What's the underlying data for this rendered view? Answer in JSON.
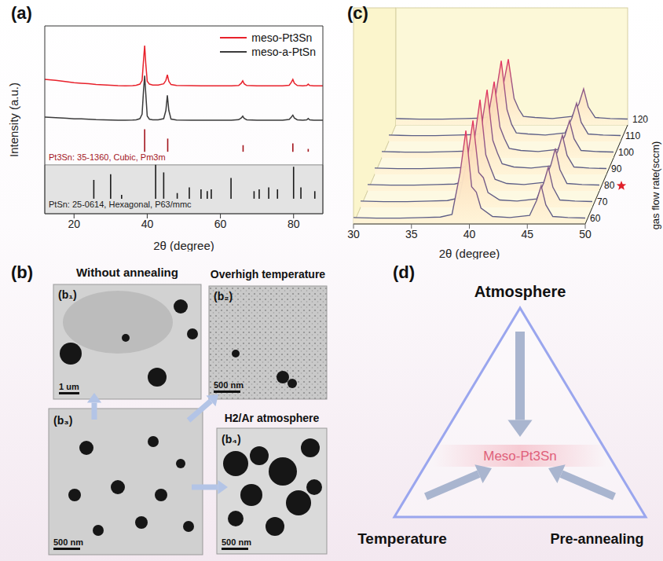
{
  "chart_data": [
    {
      "panel": "(a)",
      "type": "line",
      "x_label": "2θ (degree)",
      "y_label": "Intensity (a.u.)",
      "xlim": [
        12,
        88
      ],
      "xticks": [
        20,
        40,
        60,
        80
      ],
      "ylim": [
        0,
        100
      ],
      "tick_labels": "x",
      "legend": "upper right",
      "x": [
        12,
        15,
        18,
        20,
        22,
        24,
        26,
        28,
        30,
        32,
        34,
        36,
        37,
        38,
        38.6,
        39,
        39.3,
        39.6,
        40,
        40.6,
        41.5,
        43,
        44.5,
        45.1,
        45.5,
        45.9,
        46.5,
        48,
        52,
        56,
        60,
        63,
        65,
        65.7,
        66.1,
        66.5,
        67.2,
        70,
        74,
        77,
        78.8,
        79.4,
        79.8,
        80.2,
        81,
        82.5,
        83.6,
        84,
        84.4,
        85.5,
        88
      ],
      "series": [
        {
          "name": "meso-Pt3Sn",
          "color": "#e8212b",
          "values": [
            71.5,
            71,
            70.3,
            69.8,
            69.5,
            69.2,
            68.8,
            68.6,
            68.4,
            68.2,
            68.1,
            68.2,
            68.4,
            69,
            71,
            82,
            89.5,
            80,
            70.5,
            69,
            68.5,
            68.5,
            69.2,
            71,
            74,
            70.5,
            68.8,
            68.3,
            68.2,
            68.1,
            68.1,
            68.1,
            68.3,
            69.5,
            70.8,
            69.2,
            68.3,
            68.1,
            68.1,
            68.1,
            68.4,
            70,
            71.5,
            69.5,
            68.3,
            68.1,
            68.3,
            69,
            68.3,
            68.1,
            68.1
          ]
        },
        {
          "name": "meso-a-PtSn",
          "color": "#3b3b3b",
          "values": [
            51.5,
            51.2,
            50.8,
            50.5,
            50.5,
            50.3,
            50.1,
            50,
            49.9,
            49.8,
            49.8,
            49.9,
            50,
            50.6,
            53,
            66,
            73.5,
            64,
            52,
            50.3,
            50,
            50,
            50.6,
            55,
            63,
            55,
            50.4,
            49.9,
            49.8,
            49.8,
            49.8,
            49.8,
            50.1,
            51,
            52,
            50.8,
            50,
            49.8,
            49.8,
            49.8,
            50.2,
            51.5,
            52.5,
            51,
            50,
            49.8,
            50,
            50.7,
            50,
            49.8,
            49.8
          ]
        }
      ],
      "references": [
        {
          "name": "Pt3Sn: 35-1360, Cubic, Pm3m",
          "color": "#a3151d",
          "baseline": 33,
          "x": [
            39.3,
            45.6,
            66.2,
            79.8,
            84
          ],
          "values": [
            45,
            40,
            36.5,
            37.5,
            34.5
          ]
        },
        {
          "name": "PtSn: 25-0614, Hexagonal, P63/mmc",
          "color": "#1a1a1a",
          "baseline": 8,
          "x": [
            25.4,
            30,
            33,
            42.3,
            44.5,
            48.2,
            51.5,
            54.7,
            56.4,
            57.5,
            62.9,
            69.2,
            70.6,
            73.2,
            75.6,
            80,
            82,
            85.8
          ],
          "values": [
            18,
            21,
            10,
            26,
            22,
            11,
            14,
            13,
            12,
            13,
            19,
            12,
            13,
            14,
            13,
            25,
            14,
            12
          ]
        }
      ]
    },
    {
      "panel": "(c)",
      "type": "area",
      "x_label": "2θ (degree)",
      "z_label": "gas flow rate(sccm)",
      "xlim": [
        30,
        50
      ],
      "xticks": [
        30,
        35,
        40,
        45,
        50
      ],
      "ylim": [
        0,
        100
      ],
      "tick_labels": "x",
      "color": "#5b5f86",
      "x": [
        30,
        32,
        34,
        36,
        37.5,
        38.5,
        39.2,
        39.7,
        40.2,
        40.6,
        41,
        42,
        43.5,
        45.2,
        45.8,
        46.2,
        46.6,
        47.2,
        48.5,
        50
      ],
      "series": [
        {
          "z": 60,
          "values": [
            6,
            5.5,
            5.5,
            6,
            6.5,
            9,
            48,
            88,
            35,
            30,
            15,
            7,
            6,
            8,
            22,
            36,
            18,
            7,
            6,
            5.5
          ]
        },
        {
          "z": 70,
          "values": [
            6,
            5.5,
            5.5,
            6,
            6.5,
            9,
            45,
            82,
            33,
            28,
            14,
            7,
            6,
            8,
            23,
            38,
            19,
            7,
            6,
            5.5
          ]
        },
        {
          "z": 80,
          "marker": "star",
          "values": [
            6,
            5.5,
            5.5,
            6,
            6.5,
            9,
            47,
            86,
            34,
            22,
            11,
            7,
            6,
            8,
            24,
            40,
            20,
            7,
            6,
            5.5
          ]
        },
        {
          "z": 90,
          "values": [
            6,
            5.5,
            5.5,
            6,
            6.5,
            9,
            44,
            80,
            32,
            20,
            10,
            7,
            6,
            8,
            22,
            37,
            18,
            7,
            6,
            5.5
          ]
        },
        {
          "z": 100,
          "values": [
            6,
            5.5,
            5.5,
            6,
            6.5,
            9,
            40,
            72,
            29,
            18,
            9,
            7,
            6,
            8,
            21,
            35,
            18,
            7,
            6,
            5.5
          ]
        },
        {
          "z": 110,
          "values": [
            6,
            5.5,
            5.5,
            6,
            6.5,
            9,
            42,
            76,
            30,
            16,
            8,
            7,
            6,
            8,
            22,
            36,
            18,
            7,
            6,
            5.5
          ]
        },
        {
          "z": 120,
          "values": [
            6,
            5.5,
            5.5,
            6,
            6.5,
            9,
            34,
            62,
            25,
            15,
            8,
            7,
            6,
            8,
            20,
            34,
            17,
            7,
            6,
            5.5
          ]
        }
      ]
    }
  ],
  "panel_b": {
    "label": "(b)",
    "images": [
      {
        "label": "(b₁)",
        "caption": "Without annealing",
        "scale_bar": "1 um"
      },
      {
        "label": "(b₂)",
        "caption": "Overhigh temperature",
        "scale_bar": "500 nm"
      },
      {
        "label": "(b₃)",
        "scale_bar": "500 nm"
      },
      {
        "label": "(b₄)",
        "caption": "H2/Ar atmosphere",
        "scale_bar": "500 nm"
      }
    ]
  },
  "panel_d": {
    "label": "(d)",
    "center": "Meso-Pt3Sn",
    "vertices": {
      "top": "Atmosphere",
      "bottom_left": "Temperature",
      "bottom_right": "Pre-annealing"
    }
  }
}
